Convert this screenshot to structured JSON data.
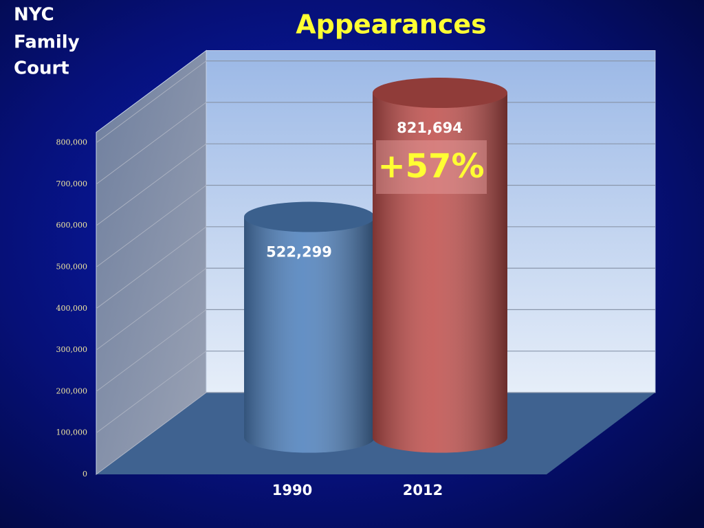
{
  "chart_data": {
    "type": "bar",
    "title": "Appearances",
    "subtitle": [
      "NYC",
      "Family",
      "Court"
    ],
    "categories": [
      "1990",
      "2012"
    ],
    "values": [
      522299,
      821694
    ],
    "value_labels": [
      "522,299",
      "821,694"
    ],
    "colors": [
      "#4f81bd",
      "#c0504d"
    ],
    "annotation": "+57%",
    "ylim": [
      0,
      825000
    ],
    "yticks": [
      0,
      {
        "value": 100000,
        "label": "100,000"
      },
      {
        "value": 200000,
        "label": "200,000"
      },
      {
        "value": 300000,
        "label": "300,000"
      },
      {
        "value": 400000,
        "label": "400,000"
      },
      {
        "value": 500000,
        "label": "500,000"
      },
      {
        "value": 600000,
        "label": "600,000"
      },
      {
        "value": 700000,
        "label": "700,000"
      },
      {
        "value": 800000,
        "label": "800,000"
      }
    ],
    "grid": true
  }
}
